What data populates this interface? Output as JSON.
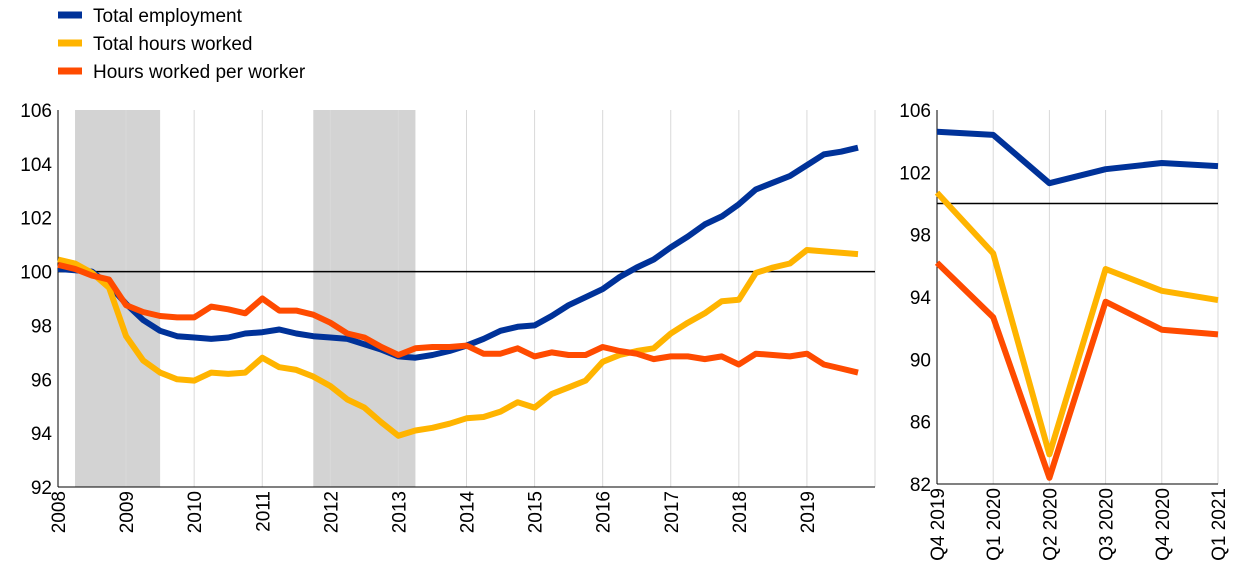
{
  "chart_data": [
    {
      "type": "line",
      "title": "",
      "xlabel": "",
      "ylabel": "",
      "x_ticks": [
        "2008",
        "2009",
        "2010",
        "2011",
        "2012",
        "2013",
        "2014",
        "2015",
        "2016",
        "2017",
        "2018",
        "2019"
      ],
      "xlim": [
        2008,
        2020
      ],
      "ylim": [
        92,
        106
      ],
      "y_ticks": [
        92,
        94,
        96,
        98,
        100,
        102,
        104,
        106
      ],
      "reference_line": 100,
      "grid": "vertical",
      "shaded_periods": [
        [
          2008.25,
          2009.5
        ],
        [
          2011.75,
          2013.25
        ]
      ],
      "legend": {
        "placement": "top-left",
        "entries": [
          "Total employment",
          "Total hours worked",
          "Hours worked per worker"
        ]
      },
      "series": [
        {
          "name": "Total employment",
          "color": "#003299",
          "x": [
            2008.0,
            2008.25,
            2008.5,
            2008.75,
            2009.0,
            2009.25,
            2009.5,
            2009.75,
            2010.0,
            2010.25,
            2010.5,
            2010.75,
            2011.0,
            2011.25,
            2011.5,
            2011.75,
            2012.0,
            2012.25,
            2012.5,
            2012.75,
            2013.0,
            2013.25,
            2013.5,
            2013.75,
            2014.0,
            2014.25,
            2014.5,
            2014.75,
            2015.0,
            2015.25,
            2015.5,
            2015.75,
            2016.0,
            2016.25,
            2016.5,
            2016.75,
            2017.0,
            2017.25,
            2017.5,
            2017.75,
            2018.0,
            2018.25,
            2018.5,
            2018.75,
            2019.0,
            2019.25,
            2019.5,
            2019.75
          ],
          "values": [
            100.1,
            100.05,
            100.0,
            99.5,
            98.8,
            98.2,
            97.8,
            97.6,
            97.55,
            97.5,
            97.55,
            97.7,
            97.75,
            97.85,
            97.7,
            97.6,
            97.55,
            97.5,
            97.3,
            97.1,
            96.85,
            96.8,
            96.9,
            97.05,
            97.25,
            97.5,
            97.8,
            97.95,
            98.0,
            98.35,
            98.75,
            99.05,
            99.35,
            99.8,
            100.15,
            100.45,
            100.9,
            101.3,
            101.75,
            102.05,
            102.5,
            103.05,
            103.3,
            103.55,
            103.95,
            104.35,
            104.45,
            104.6
          ]
        },
        {
          "name": "Total hours worked",
          "color": "#ffb400",
          "x": [
            2008.0,
            2008.25,
            2008.5,
            2008.75,
            2009.0,
            2009.25,
            2009.5,
            2009.75,
            2010.0,
            2010.25,
            2010.5,
            2010.75,
            2011.0,
            2011.25,
            2011.5,
            2011.75,
            2012.0,
            2012.25,
            2012.5,
            2012.75,
            2013.0,
            2013.25,
            2013.5,
            2013.75,
            2014.0,
            2014.25,
            2014.5,
            2014.75,
            2015.0,
            2015.25,
            2015.5,
            2015.75,
            2016.0,
            2016.25,
            2016.5,
            2016.75,
            2017.0,
            2017.25,
            2017.5,
            2017.75,
            2018.0,
            2018.25,
            2018.5,
            2018.75,
            2019.0,
            2019.25,
            2019.5,
            2019.75
          ],
          "values": [
            100.45,
            100.3,
            99.95,
            99.4,
            97.6,
            96.7,
            96.25,
            96.0,
            95.95,
            96.25,
            96.2,
            96.25,
            96.8,
            96.45,
            96.35,
            96.1,
            95.75,
            95.25,
            94.95,
            94.4,
            93.9,
            94.1,
            94.2,
            94.35,
            94.55,
            94.6,
            94.8,
            95.15,
            94.95,
            95.45,
            95.7,
            95.95,
            96.65,
            96.9,
            97.05,
            97.15,
            97.7,
            98.1,
            98.45,
            98.9,
            98.95,
            99.95,
            100.15,
            100.3,
            100.8,
            100.75,
            100.7,
            100.65
          ]
        },
        {
          "name": "Hours worked per worker",
          "color": "#ff4b00",
          "x": [
            2008.0,
            2008.25,
            2008.5,
            2008.75,
            2009.0,
            2009.25,
            2009.5,
            2009.75,
            2010.0,
            2010.25,
            2010.5,
            2010.75,
            2011.0,
            2011.25,
            2011.5,
            2011.75,
            2012.0,
            2012.25,
            2012.5,
            2012.75,
            2013.0,
            2013.25,
            2013.5,
            2013.75,
            2014.0,
            2014.25,
            2014.5,
            2014.75,
            2015.0,
            2015.25,
            2015.5,
            2015.75,
            2016.0,
            2016.25,
            2016.5,
            2016.75,
            2017.0,
            2017.25,
            2017.5,
            2017.75,
            2018.0,
            2018.25,
            2018.5,
            2018.75,
            2019.0,
            2019.25,
            2019.5,
            2019.75
          ],
          "values": [
            100.25,
            100.1,
            99.85,
            99.7,
            98.75,
            98.5,
            98.35,
            98.3,
            98.3,
            98.7,
            98.6,
            98.45,
            99.0,
            98.55,
            98.55,
            98.4,
            98.1,
            97.7,
            97.55,
            97.2,
            96.9,
            97.15,
            97.2,
            97.2,
            97.25,
            96.95,
            96.95,
            97.15,
            96.85,
            97.0,
            96.9,
            96.9,
            97.2,
            97.05,
            96.95,
            96.75,
            96.85,
            96.85,
            96.75,
            96.85,
            96.55,
            96.95,
            96.9,
            96.85,
            96.95,
            96.55,
            96.4,
            96.25
          ]
        }
      ]
    },
    {
      "type": "line",
      "title": "",
      "xlabel": "",
      "ylabel": "",
      "categories": [
        "Q4 2019",
        "Q1 2020",
        "Q2 2020",
        "Q3 2020",
        "Q4 2020",
        "Q1 2021"
      ],
      "ylim": [
        82,
        106
      ],
      "y_ticks": [
        82,
        86,
        90,
        94,
        98,
        102,
        106
      ],
      "reference_line": 100,
      "grid": "vertical",
      "series": [
        {
          "name": "Total employment",
          "color": "#003299",
          "values": [
            104.6,
            104.4,
            101.3,
            102.2,
            102.6,
            102.4
          ]
        },
        {
          "name": "Total hours worked",
          "color": "#ffb400",
          "values": [
            100.7,
            96.8,
            83.9,
            95.8,
            94.4,
            93.8
          ]
        },
        {
          "name": "Hours worked per worker",
          "color": "#ff4b00",
          "values": [
            96.2,
            92.7,
            82.4,
            93.7,
            91.9,
            91.6
          ]
        }
      ]
    }
  ]
}
